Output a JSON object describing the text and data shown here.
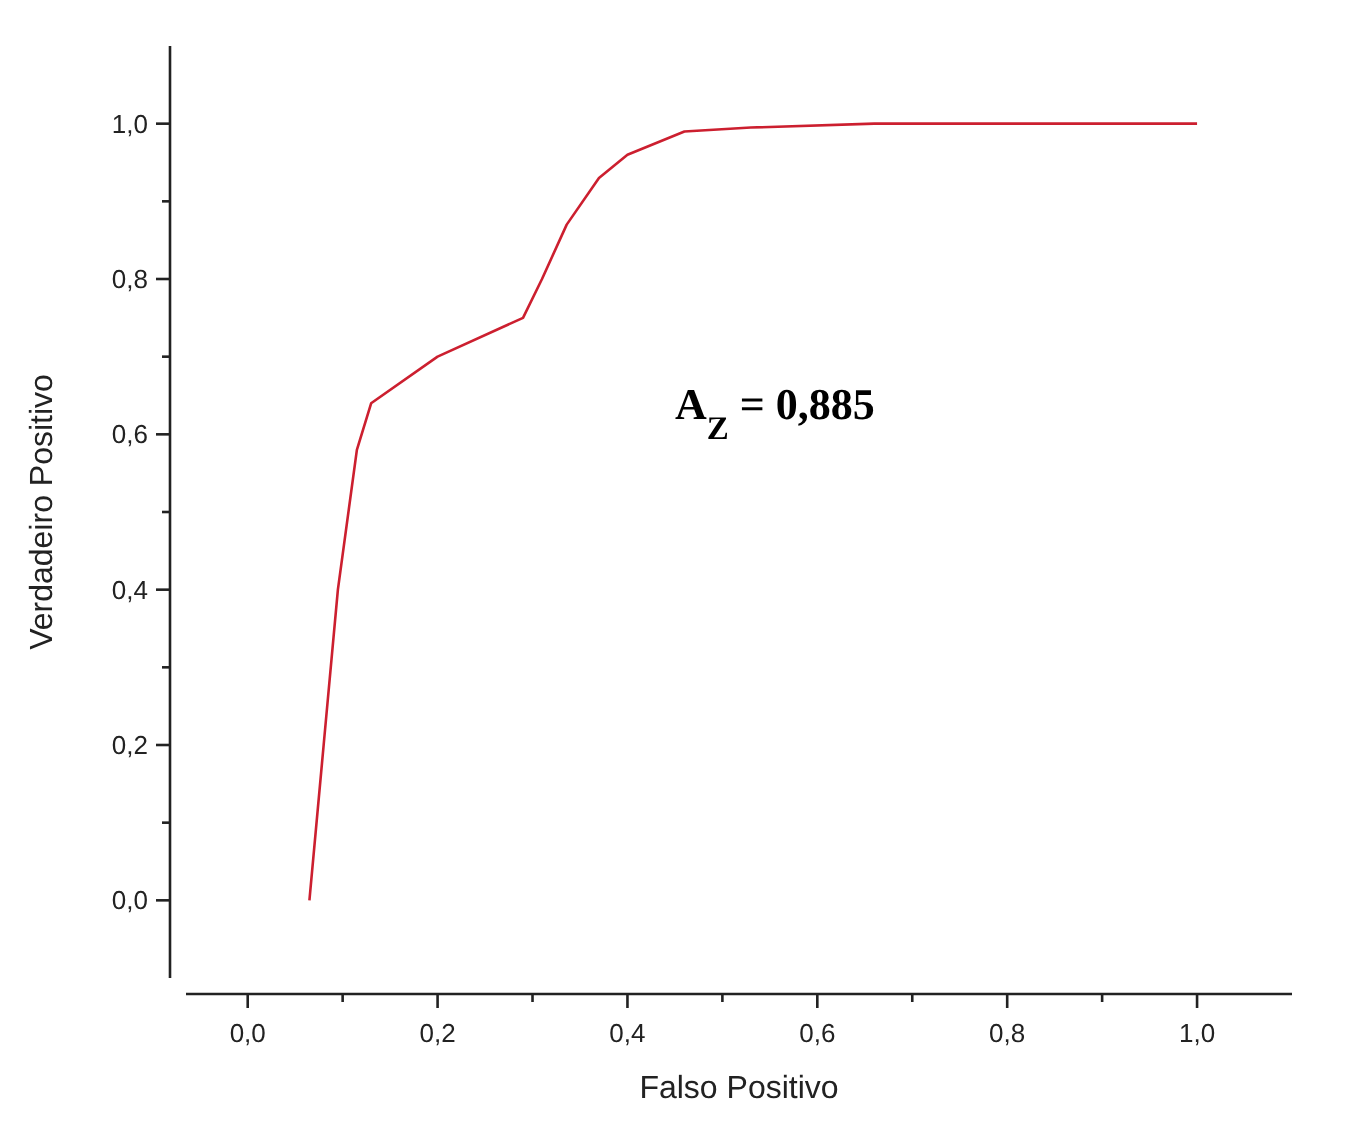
{
  "chart_data": {
    "type": "line",
    "xlabel": "Falso Positivo",
    "ylabel": "Verdadeiro Positivo",
    "annotations": [
      "A$_{Z}$ = 0,885"
    ],
    "x": [
      0.065,
      0.08,
      0.095,
      0.115,
      0.13,
      0.2,
      0.29,
      0.31,
      0.336,
      0.37,
      0.4,
      0.46,
      0.53,
      0.66,
      1.0
    ],
    "series": [
      {
        "color": "#cc1f2f",
        "values": [
          0,
          0.2,
          0.4,
          0.58,
          0.64,
          0.7,
          0.75,
          0.8,
          0.87,
          0.93,
          0.96,
          0.99,
          0.995,
          1.0,
          1.0
        ]
      }
    ],
    "xlim": [
      -0.065,
      1.1
    ],
    "ylim": [
      -0.1,
      1.1
    ],
    "xticks": [
      {
        "value": 0,
        "label": "0,0"
      },
      {
        "value": 0.1,
        "label": null
      },
      {
        "value": 0.2,
        "label": "0,2"
      },
      {
        "value": 0.3,
        "label": null
      },
      {
        "value": 0.4,
        "label": "0,4"
      },
      {
        "value": 0.5,
        "label": null
      },
      {
        "value": 0.6,
        "label": "0,6"
      },
      {
        "value": 0.7,
        "label": null
      },
      {
        "value": 0.8,
        "label": "0,8"
      },
      {
        "value": 0.9,
        "label": null
      },
      {
        "value": 1,
        "label": "1,0"
      }
    ],
    "yticks": [
      {
        "value": 0,
        "label": "0,0"
      },
      {
        "value": 0.1,
        "label": null
      },
      {
        "value": 0.2,
        "label": "0,2"
      },
      {
        "value": 0.3,
        "label": null
      },
      {
        "value": 0.4,
        "label": "0,4"
      },
      {
        "value": 0.5,
        "label": null
      },
      {
        "value": 0.6,
        "label": "0,6"
      },
      {
        "value": 0.7,
        "label": null
      },
      {
        "value": 0.8,
        "label": "0,8"
      },
      {
        "value": 0.9,
        "label": null
      },
      {
        "value": 1,
        "label": "1,0"
      }
    ],
    "grid": false,
    "marker": "none",
    "line_style": "solid"
  }
}
